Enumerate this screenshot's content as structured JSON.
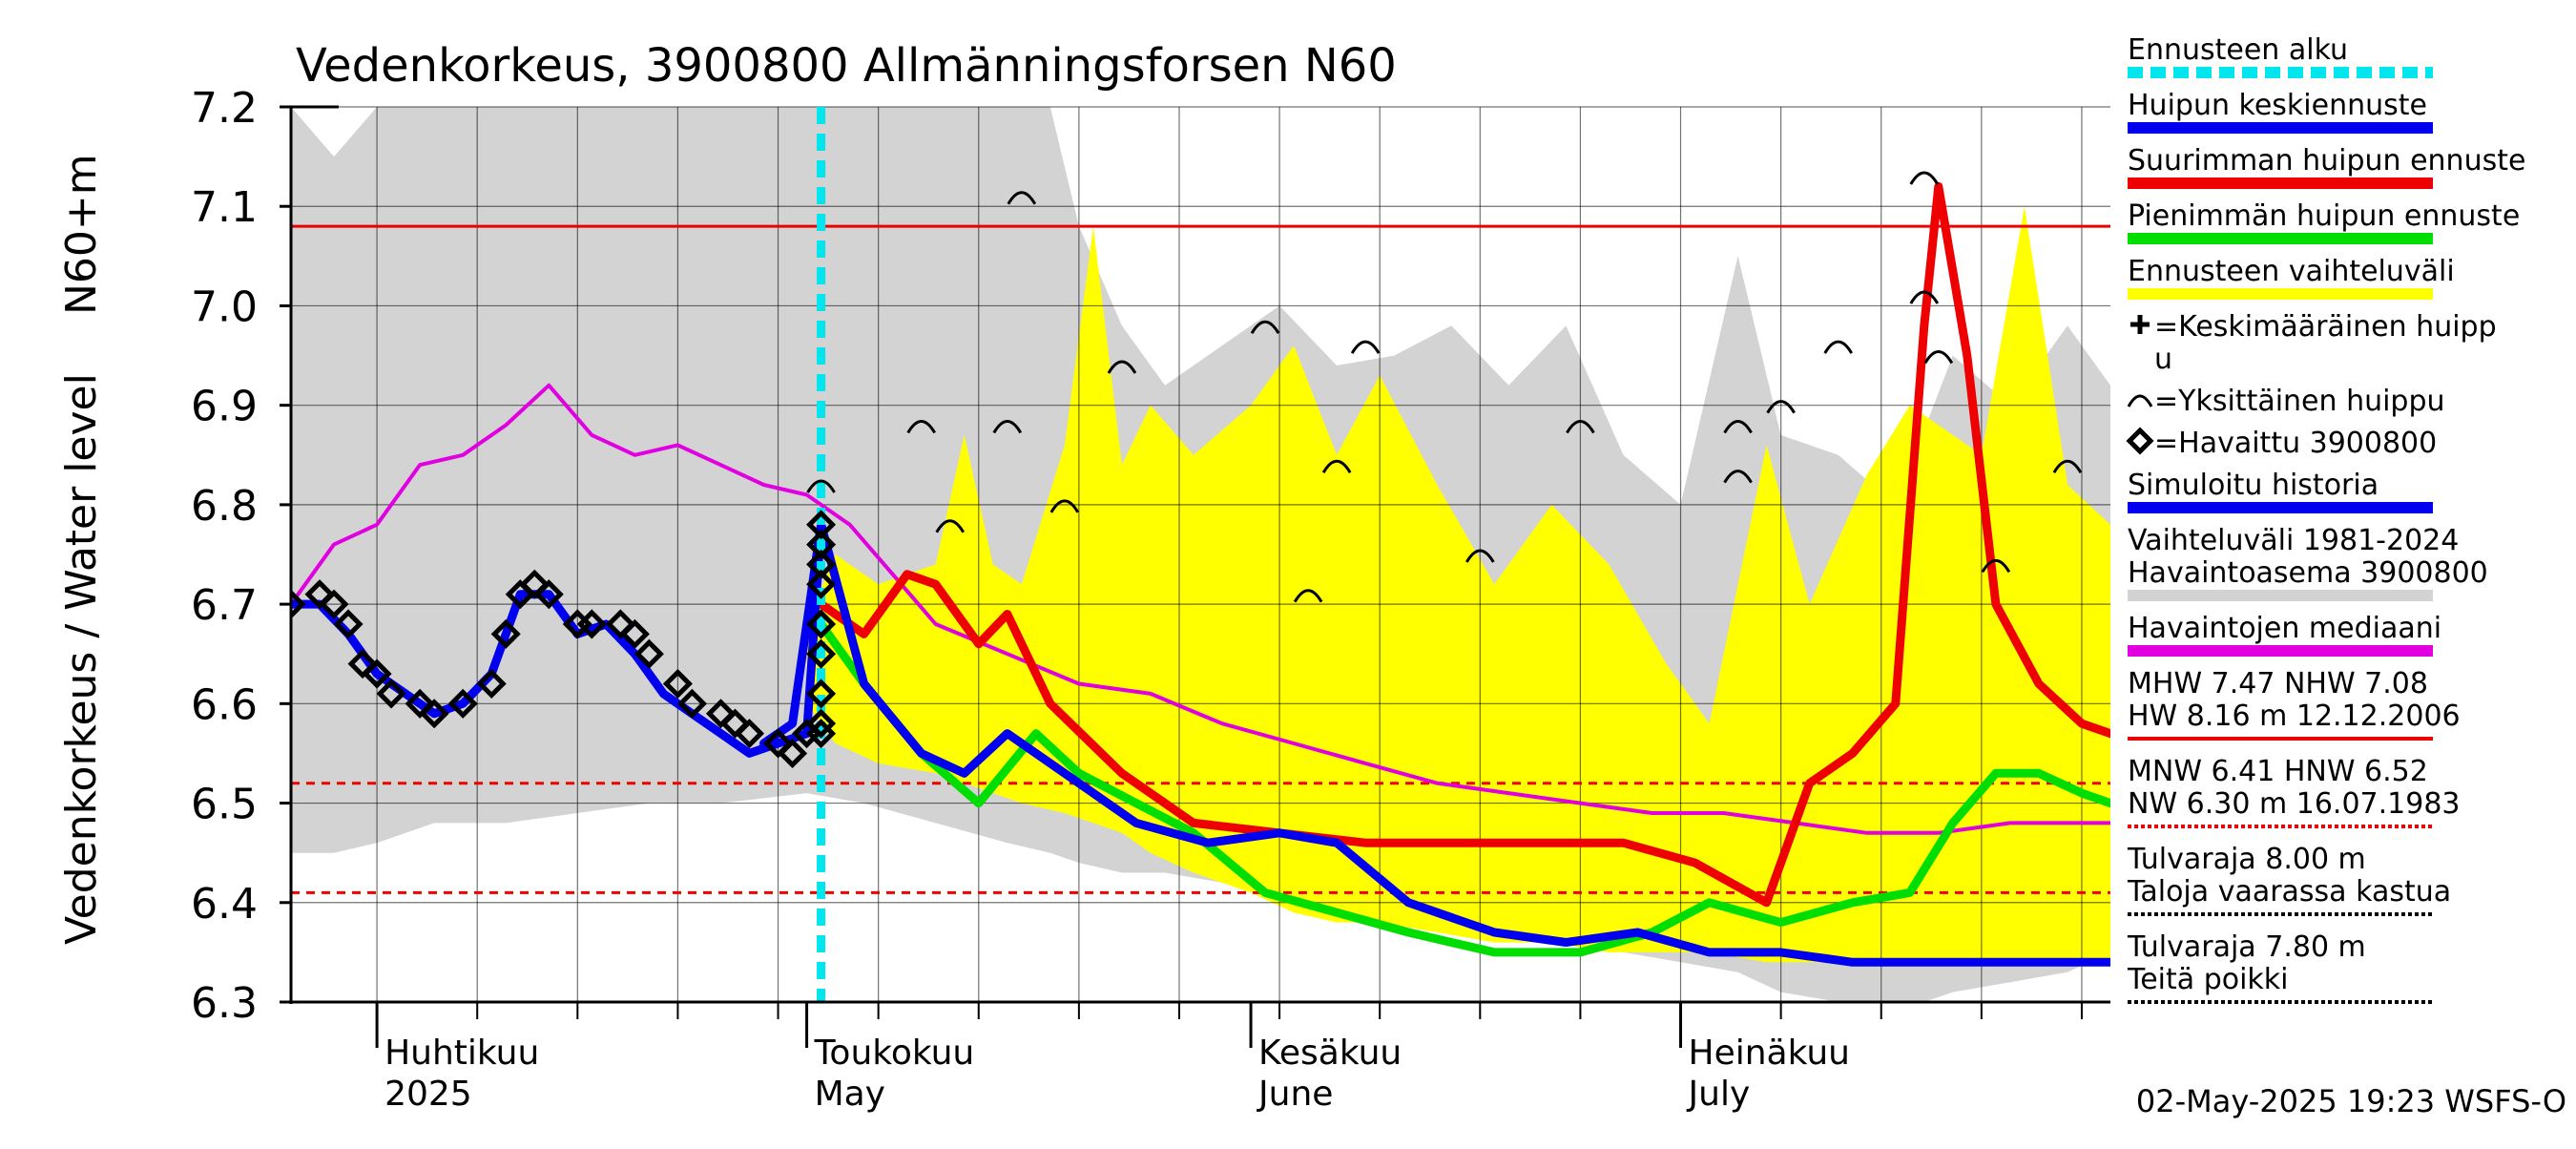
{
  "chart_data": {
    "type": "line",
    "title": "Vedenkorkeus, 3900800 Allmänningsforsen N60",
    "ylabel_top": "N60+m",
    "ylabel": "Vedenkorkeus / Water level",
    "ylim": [
      6.3,
      7.2
    ],
    "yticks": [
      "6.3",
      "6.4",
      "6.5",
      "6.6",
      "6.7",
      "6.8",
      "6.9",
      "7.0",
      "7.1",
      "7.2"
    ],
    "xlim": [
      "2025-03-26",
      "2025-07-31"
    ],
    "forecast_start": "2025-05-02",
    "month_labels": [
      {
        "date": "2025-04-01",
        "fi": "Huhtikuu",
        "en": "2025"
      },
      {
        "date": "2025-05-01",
        "fi": "Toukokuu",
        "en": "May"
      },
      {
        "date": "2025-06-01",
        "fi": "Kesäkuu",
        "en": "June"
      },
      {
        "date": "2025-07-01",
        "fi": "Heinäkuu",
        "en": "July"
      }
    ],
    "reference_lines": [
      {
        "name": "NHW",
        "value": 7.08,
        "style": "solid"
      },
      {
        "name": "HNW",
        "value": 6.52,
        "style": "dashed"
      },
      {
        "name": "MNW",
        "value": 6.41,
        "style": "dashed"
      }
    ],
    "series": [
      {
        "key": "hist_band",
        "kind": "band",
        "x": [
          "2025-03-26",
          "2025-03-29",
          "2025-04-01",
          "2025-04-05",
          "2025-04-10",
          "2025-04-15",
          "2025-04-20",
          "2025-04-25",
          "2025-05-01",
          "2025-05-05",
          "2025-05-10",
          "2025-05-15",
          "2025-05-18",
          "2025-05-20",
          "2025-05-23",
          "2025-05-26",
          "2025-05-30",
          "2025-06-03",
          "2025-06-07",
          "2025-06-11",
          "2025-06-15",
          "2025-06-19",
          "2025-06-23",
          "2025-06-27",
          "2025-07-01",
          "2025-07-05",
          "2025-07-08",
          "2025-07-12",
          "2025-07-16",
          "2025-07-20",
          "2025-07-24",
          "2025-07-28",
          "2025-07-31"
        ],
        "upper": [
          7.2,
          7.15,
          7.2,
          7.2,
          7.2,
          7.2,
          7.2,
          7.2,
          7.2,
          7.2,
          7.2,
          7.2,
          7.2,
          7.08,
          6.98,
          6.92,
          6.96,
          7.0,
          6.94,
          6.95,
          6.98,
          6.92,
          6.98,
          6.85,
          6.8,
          7.05,
          6.87,
          6.85,
          6.8,
          6.95,
          6.9,
          6.98,
          6.92
        ],
        "lower": [
          6.45,
          6.45,
          6.46,
          6.48,
          6.48,
          6.49,
          6.5,
          6.5,
          6.51,
          6.5,
          6.48,
          6.46,
          6.45,
          6.44,
          6.43,
          6.43,
          6.42,
          6.41,
          6.39,
          6.38,
          6.38,
          6.37,
          6.36,
          6.35,
          6.34,
          6.33,
          6.31,
          6.3,
          6.29,
          6.31,
          6.32,
          6.33,
          6.35
        ]
      },
      {
        "key": "forecast_band",
        "kind": "band",
        "x": [
          "2025-05-01",
          "2025-05-03",
          "2025-05-06",
          "2025-05-10",
          "2025-05-12",
          "2025-05-14",
          "2025-05-16",
          "2025-05-19",
          "2025-05-21",
          "2025-05-23",
          "2025-05-25",
          "2025-05-28",
          "2025-06-01",
          "2025-06-04",
          "2025-06-07",
          "2025-06-10",
          "2025-06-14",
          "2025-06-18",
          "2025-06-22",
          "2025-06-26",
          "2025-06-30",
          "2025-07-03",
          "2025-07-07",
          "2025-07-10",
          "2025-07-14",
          "2025-07-17",
          "2025-07-19",
          "2025-07-22",
          "2025-07-25",
          "2025-07-28",
          "2025-07-31"
        ],
        "upper": [
          6.68,
          6.75,
          6.72,
          6.74,
          6.87,
          6.74,
          6.72,
          6.86,
          7.08,
          6.84,
          6.9,
          6.85,
          6.9,
          6.96,
          6.85,
          6.93,
          6.82,
          6.72,
          6.8,
          6.74,
          6.64,
          6.58,
          6.86,
          6.7,
          6.83,
          6.9,
          6.88,
          6.85,
          7.1,
          6.82,
          6.78
        ],
        "lower": [
          6.6,
          6.56,
          6.54,
          6.53,
          6.52,
          6.51,
          6.5,
          6.49,
          6.48,
          6.47,
          6.45,
          6.43,
          6.41,
          6.39,
          6.38,
          6.38,
          6.37,
          6.36,
          6.36,
          6.35,
          6.35,
          6.35,
          6.34,
          6.34,
          6.34,
          6.34,
          6.34,
          6.34,
          6.34,
          6.34,
          6.34
        ]
      },
      {
        "key": "median",
        "name": "Havaintojen mediaani",
        "color": "#e000e0",
        "width": 4,
        "x": [
          "2025-03-26",
          "2025-03-29",
          "2025-04-01",
          "2025-04-04",
          "2025-04-07",
          "2025-04-10",
          "2025-04-13",
          "2025-04-16",
          "2025-04-19",
          "2025-04-22",
          "2025-04-25",
          "2025-04-28",
          "2025-05-01",
          "2025-05-04",
          "2025-05-07",
          "2025-05-10",
          "2025-05-15",
          "2025-05-20",
          "2025-05-25",
          "2025-05-30",
          "2025-06-04",
          "2025-06-09",
          "2025-06-14",
          "2025-06-19",
          "2025-06-24",
          "2025-06-29",
          "2025-07-04",
          "2025-07-09",
          "2025-07-14",
          "2025-07-19",
          "2025-07-24",
          "2025-07-29",
          "2025-07-31"
        ],
        "y": [
          6.7,
          6.76,
          6.78,
          6.84,
          6.85,
          6.88,
          6.92,
          6.87,
          6.85,
          6.86,
          6.84,
          6.82,
          6.81,
          6.78,
          6.73,
          6.68,
          6.65,
          6.62,
          6.61,
          6.58,
          6.56,
          6.54,
          6.52,
          6.51,
          6.5,
          6.49,
          6.49,
          6.48,
          6.47,
          6.47,
          6.48,
          6.48,
          6.48
        ]
      },
      {
        "key": "min_peak",
        "name": "Pienimmän huipun ennuste",
        "color": "#00dd00",
        "width": 9,
        "x": [
          "2025-05-02",
          "2025-05-05",
          "2025-05-09",
          "2025-05-13",
          "2025-05-17",
          "2025-05-20",
          "2025-05-24",
          "2025-05-28",
          "2025-06-02",
          "2025-06-07",
          "2025-06-12",
          "2025-06-18",
          "2025-06-24",
          "2025-06-29",
          "2025-07-03",
          "2025-07-08",
          "2025-07-13",
          "2025-07-17",
          "2025-07-20",
          "2025-07-23",
          "2025-07-26",
          "2025-07-29",
          "2025-07-31"
        ],
        "y": [
          6.68,
          6.62,
          6.55,
          6.5,
          6.57,
          6.53,
          6.5,
          6.47,
          6.41,
          6.39,
          6.37,
          6.35,
          6.35,
          6.37,
          6.4,
          6.38,
          6.4,
          6.41,
          6.48,
          6.53,
          6.53,
          6.51,
          6.5
        ]
      },
      {
        "key": "max_peak",
        "name": "Suurimman huipun ennuste",
        "color": "#ee0000",
        "width": 9,
        "x": [
          "2025-05-02",
          "2025-05-05",
          "2025-05-08",
          "2025-05-10",
          "2025-05-13",
          "2025-05-15",
          "2025-05-18",
          "2025-05-23",
          "2025-05-28",
          "2025-06-03",
          "2025-06-09",
          "2025-06-15",
          "2025-06-21",
          "2025-06-27",
          "2025-07-02",
          "2025-07-07",
          "2025-07-10",
          "2025-07-13",
          "2025-07-16",
          "2025-07-18",
          "2025-07-19",
          "2025-07-21",
          "2025-07-23",
          "2025-07-26",
          "2025-07-29",
          "2025-07-31"
        ],
        "y": [
          6.7,
          6.67,
          6.73,
          6.72,
          6.66,
          6.69,
          6.6,
          6.53,
          6.48,
          6.47,
          6.46,
          6.46,
          6.46,
          6.46,
          6.44,
          6.4,
          6.52,
          6.55,
          6.6,
          6.98,
          7.12,
          6.95,
          6.7,
          6.62,
          6.58,
          6.57
        ]
      },
      {
        "key": "mean_peak",
        "name": "Huipun keskiennuste",
        "color": "#0000ee",
        "width": 9,
        "x": [
          "2025-04-28",
          "2025-04-30",
          "2025-05-02",
          "2025-05-05",
          "2025-05-09",
          "2025-05-12",
          "2025-05-15",
          "2025-05-19",
          "2025-05-24",
          "2025-05-29",
          "2025-06-03",
          "2025-06-07",
          "2025-06-12",
          "2025-06-18",
          "2025-06-23",
          "2025-06-28",
          "2025-07-03",
          "2025-07-08",
          "2025-07-13",
          "2025-07-18",
          "2025-07-24",
          "2025-07-31"
        ],
        "y": [
          6.56,
          6.58,
          6.78,
          6.62,
          6.55,
          6.53,
          6.57,
          6.53,
          6.48,
          6.46,
          6.47,
          6.46,
          6.4,
          6.37,
          6.36,
          6.37,
          6.35,
          6.35,
          6.34,
          6.34,
          6.34,
          6.34
        ]
      },
      {
        "key": "sim_history",
        "name": "Simuloitu historia",
        "color": "#0000ee",
        "width": 9,
        "x": [
          "2025-03-26",
          "2025-03-28",
          "2025-03-30",
          "2025-04-01",
          "2025-04-03",
          "2025-04-05",
          "2025-04-07",
          "2025-04-09",
          "2025-04-11",
          "2025-04-13",
          "2025-04-15",
          "2025-04-17",
          "2025-04-19",
          "2025-04-21",
          "2025-04-23",
          "2025-04-25",
          "2025-04-27",
          "2025-04-29",
          "2025-05-01",
          "2025-05-02"
        ],
        "y": [
          6.7,
          6.7,
          6.67,
          6.63,
          6.61,
          6.59,
          6.6,
          6.63,
          6.71,
          6.71,
          6.67,
          6.68,
          6.65,
          6.61,
          6.59,
          6.57,
          6.55,
          6.56,
          6.57,
          6.78
        ]
      }
    ],
    "observed": {
      "name": "Havaittu 3900800",
      "x": [
        "2025-03-26",
        "2025-03-28",
        "2025-03-29",
        "2025-03-30",
        "2025-03-31",
        "2025-04-01",
        "2025-04-02",
        "2025-04-04",
        "2025-04-05",
        "2025-04-07",
        "2025-04-09",
        "2025-04-10",
        "2025-04-11",
        "2025-04-12",
        "2025-04-13",
        "2025-04-15",
        "2025-04-16",
        "2025-04-18",
        "2025-04-19",
        "2025-04-20",
        "2025-04-22",
        "2025-04-23",
        "2025-04-25",
        "2025-04-26",
        "2025-04-27",
        "2025-04-29",
        "2025-04-30",
        "2025-05-01",
        "2025-05-02",
        "2025-05-02",
        "2025-05-02",
        "2025-05-02",
        "2025-05-02",
        "2025-05-02",
        "2025-05-02",
        "2025-05-02",
        "2025-05-02"
      ],
      "y": [
        6.7,
        6.71,
        6.7,
        6.68,
        6.64,
        6.63,
        6.61,
        6.6,
        6.59,
        6.6,
        6.62,
        6.67,
        6.71,
        6.72,
        6.71,
        6.68,
        6.68,
        6.68,
        6.67,
        6.65,
        6.62,
        6.6,
        6.59,
        6.58,
        6.57,
        6.56,
        6.55,
        6.57,
        6.58,
        6.57,
        6.61,
        6.65,
        6.68,
        6.72,
        6.74,
        6.76,
        6.78
      ]
    },
    "single_peaks": {
      "name": "Yksittäinen huippu",
      "x": [
        "2025-05-02",
        "2025-05-09",
        "2025-05-11",
        "2025-05-15",
        "2025-05-16",
        "2025-05-19",
        "2025-05-23",
        "2025-06-02",
        "2025-06-05",
        "2025-06-07",
        "2025-06-09",
        "2025-06-17",
        "2025-06-24",
        "2025-07-05",
        "2025-07-05",
        "2025-07-08",
        "2025-07-12",
        "2025-07-18",
        "2025-07-18",
        "2025-07-19",
        "2025-07-23",
        "2025-07-28"
      ],
      "y": [
        6.82,
        6.88,
        6.78,
        6.88,
        7.11,
        6.8,
        6.94,
        6.98,
        6.71,
        6.84,
        6.96,
        6.75,
        6.88,
        6.88,
        6.83,
        6.9,
        6.96,
        7.01,
        7.13,
        6.95,
        6.74,
        6.84
      ]
    },
    "legend": [
      {
        "key": "forecast_start",
        "label": "Ennusteen alku",
        "color": "#00e5ee",
        "style": "dash"
      },
      {
        "key": "mean_peak",
        "label": "Huipun keskiennuste",
        "color": "#0000ee",
        "style": "solid"
      },
      {
        "key": "max_peak",
        "label": "Suurimman huipun ennuste",
        "color": "#ee0000",
        "style": "solid"
      },
      {
        "key": "min_peak",
        "label": "Pienimmän huipun ennuste",
        "color": "#00dd00",
        "style": "solid"
      },
      {
        "key": "forecast_band",
        "label": "Ennusteen vaihteluväli",
        "color": "#ffff00",
        "style": "solid"
      },
      {
        "key": "mean_marker",
        "label": "=Keskimääräinen huipp",
        "label2": "u",
        "symbol": "plus"
      },
      {
        "key": "single_marker",
        "label": "=Yksittäinen huippu",
        "symbol": "arc"
      },
      {
        "key": "obs_marker",
        "label": "=Havaittu 3900800",
        "symbol": "diamond"
      },
      {
        "key": "sim_history",
        "label": "Simuloitu historia",
        "color": "#0000ee",
        "style": "solid"
      },
      {
        "key": "hist_band",
        "label": "Vaihteluväli 1981-2024",
        "label2": " Havaintoasema 3900800",
        "color": "#d3d3d3",
        "style": "solid"
      },
      {
        "key": "median",
        "label": "Havaintojen mediaani",
        "color": "#e000e0",
        "style": "solid"
      },
      {
        "key": "high_stats",
        "label": "MHW    7.47 NHW    7.08",
        "label2": "HW    8.16 m 12.12.2006",
        "color": "#ee0000",
        "style": "solid"
      },
      {
        "key": "low_stats",
        "label": "MNW    6.41 HNW    6.52",
        "label2": "NW    6.30 m 16.07.1983",
        "color": "#ee0000",
        "style": "dotted"
      },
      {
        "key": "flood1",
        "label": "Tulvaraja 8.00 m",
        "label2": "Taloja vaarassa kastua",
        "color": "#000000",
        "style": "dotted"
      },
      {
        "key": "flood2",
        "label": "Tulvaraja 7.80 m",
        "label2": "Teitä poikki",
        "color": "#000000",
        "style": "dotted"
      }
    ],
    "timestamp": "02-May-2025 19:23 WSFS-O",
    "colors": {
      "forecast_start": "#00e5ee",
      "hist_band": "#d3d3d3",
      "forecast_band": "#ffff00",
      "reference": "#ee0000"
    }
  }
}
